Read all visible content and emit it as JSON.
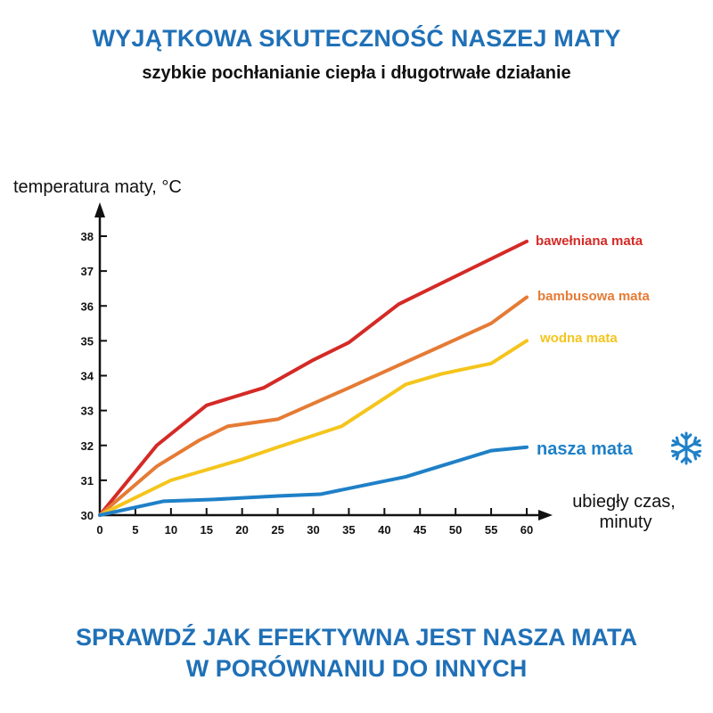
{
  "header": {
    "title": "WYJĄTKOWA SKUTECZNOŚĆ NASZEJ MATY",
    "subtitle": "szybkie pochłanianie ciepła i długotrwałe działanie"
  },
  "footer": {
    "line1": "SPRAWDŹ JAK EFEKTYWNA JEST NASZA MATA",
    "line2": "W PORÓWNANIU DO INNYCH"
  },
  "icons": {
    "series_marker": "snowflake-icon"
  },
  "chart_data": {
    "type": "line",
    "title": "",
    "ylabel": "temperatura maty, °C",
    "xlabel_lines": [
      "ubiegły czas,",
      "minuty"
    ],
    "x_ticks": [
      0,
      5,
      10,
      15,
      20,
      25,
      30,
      35,
      40,
      45,
      50,
      55,
      60
    ],
    "y_ticks": [
      30,
      31,
      32,
      33,
      34,
      35,
      36,
      37,
      38
    ],
    "xlim": [
      0,
      60
    ],
    "ylim": [
      30,
      38
    ],
    "grid": false,
    "legend": "inline-right",
    "series": [
      {
        "name": "bawełniana mata",
        "color": "#d42a26",
        "x": [
          0,
          8,
          15,
          23,
          30,
          35,
          42,
          50,
          60
        ],
        "y": [
          30,
          32.0,
          33.15,
          33.65,
          34.45,
          34.95,
          36.05,
          36.85,
          37.85
        ]
      },
      {
        "name": "bambusowa mata",
        "color": "#e57b35",
        "x": [
          0,
          8,
          14,
          18,
          25,
          35,
          42,
          48,
          55,
          60
        ],
        "y": [
          30,
          31.4,
          32.15,
          32.55,
          32.75,
          33.65,
          34.3,
          34.85,
          35.5,
          36.25
        ]
      },
      {
        "name": "wodna mata",
        "color": "#f4c51c",
        "x": [
          0,
          10,
          20,
          25,
          34,
          43,
          48,
          55,
          60
        ],
        "y": [
          30,
          31.0,
          31.6,
          31.95,
          32.55,
          33.75,
          34.05,
          34.35,
          35.0
        ]
      },
      {
        "name": "nasza mata",
        "color": "#1f80c7",
        "x": [
          0,
          9,
          16,
          25,
          31,
          43,
          55,
          60
        ],
        "y": [
          30,
          30.4,
          30.45,
          30.55,
          30.6,
          31.1,
          31.85,
          31.95
        ]
      }
    ]
  }
}
